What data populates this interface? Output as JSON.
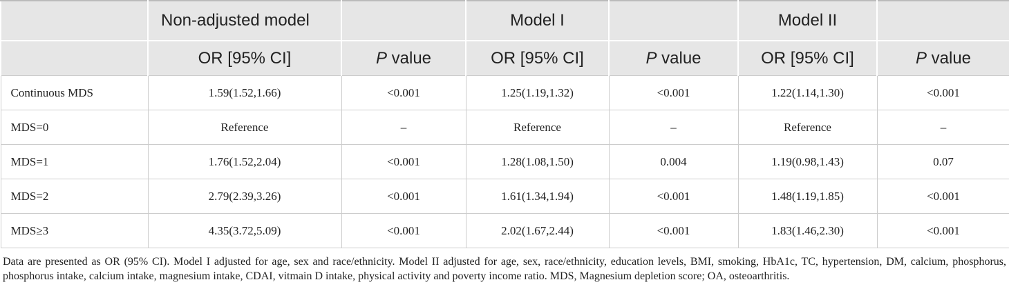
{
  "table": {
    "header_top": [
      "Non-adjusted model",
      "Model I",
      "Model II"
    ],
    "header_sub": [
      "OR [95% CI]",
      "P value",
      "OR [95% CI]",
      "P value",
      "OR [95% CI]",
      "P value"
    ],
    "rows": [
      [
        "Continuous MDS",
        "1.59(1.52,1.66)",
        "<0.001",
        "1.25(1.19,1.32)",
        "<0.001",
        "1.22(1.14,1.30)",
        "<0.001"
      ],
      [
        "MDS=0",
        "Reference",
        "–",
        "Reference",
        "–",
        "Reference",
        "–"
      ],
      [
        "MDS=1",
        "1.76(1.52,2.04)",
        "<0.001",
        "1.28(1.08,1.50)",
        "0.004",
        "1.19(0.98,1.43)",
        "0.07"
      ],
      [
        "MDS=2",
        "2.79(2.39,3.26)",
        "<0.001",
        "1.61(1.34,1.94)",
        "<0.001",
        "1.48(1.19,1.85)",
        "<0.001"
      ],
      [
        "MDS≥3",
        "4.35(3.72,5.09)",
        "<0.001",
        "2.02(1.67,2.44)",
        "<0.001",
        "1.83(1.46,2.30)",
        "<0.001"
      ]
    ]
  },
  "footnote": "Data are presented as OR (95% CI). Model I adjusted for age, sex and race/ethnicity. Model II adjusted for age, sex, race/ethnicity, education levels, BMI, smoking, HbA1c, TC, hypertension, DM, calcium, phosphorus, phosphorus intake, calcium intake, magnesium intake, CDAI, vitmain D intake, physical activity and poverty income ratio. MDS, Magnesium depletion score; OA, osteoarthritis."
}
